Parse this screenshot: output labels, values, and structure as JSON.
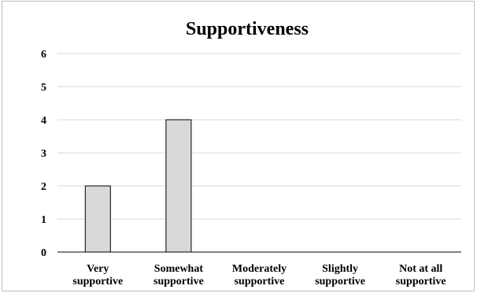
{
  "chart_data": {
    "type": "bar",
    "title": "Supportiveness",
    "categories": [
      [
        "Very",
        "supportive"
      ],
      [
        "Somewhat",
        "supportive"
      ],
      [
        "Moderately",
        "supportive"
      ],
      [
        "Slightly",
        "supportive"
      ],
      [
        "Not at all",
        "supportive"
      ]
    ],
    "values": [
      2,
      4,
      0,
      0,
      0
    ],
    "ylim": [
      0,
      6
    ],
    "yticks": [
      0,
      1,
      2,
      3,
      4,
      5,
      6
    ],
    "xlabel": "",
    "ylabel": "",
    "grid": true,
    "legend": "none",
    "colors": {
      "bar_fill": "#d9d9d9",
      "bar_stroke": "#000000",
      "grid": "#d9d9d9",
      "axis": "#000000"
    }
  }
}
